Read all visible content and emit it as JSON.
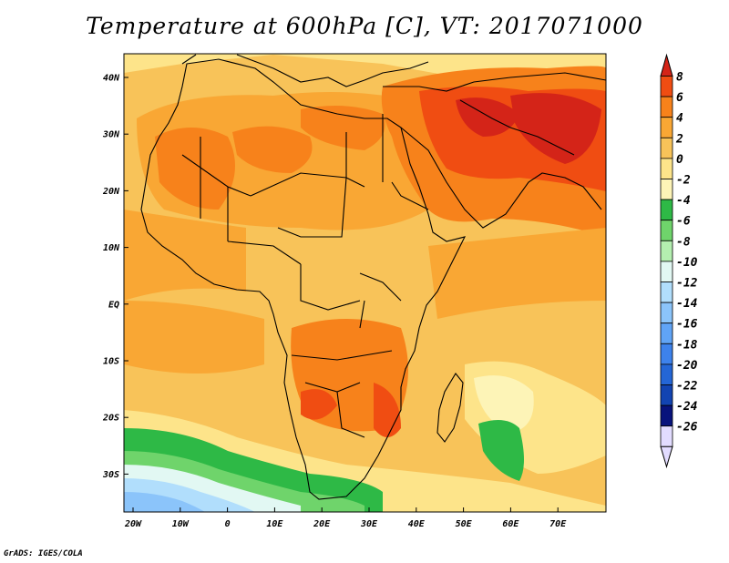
{
  "title": "Temperature at 600hPa [C], VT: 2017071000",
  "credit": "GrADS: IGES/COLA",
  "lat_labels": [
    "40N",
    "30N",
    "20N",
    "10N",
    "EQ",
    "10S",
    "20S",
    "30S"
  ],
  "lon_labels": [
    "20W",
    "10W",
    "0",
    "10E",
    "20E",
    "30E",
    "40E",
    "50E",
    "60E",
    "70E"
  ],
  "colorbar": {
    "labels": [
      "8",
      "6",
      "4",
      "2",
      "0",
      "-2",
      "-4",
      "-6",
      "-8",
      "-10",
      "-12",
      "-14",
      "-16",
      "-18",
      "-20",
      "-22",
      "-24",
      "-26"
    ],
    "colors": [
      "#d42418",
      "#f04d12",
      "#f7821b",
      "#f9a734",
      "#f8c359",
      "#fde48a",
      "#fdf4b7",
      "#2eb946",
      "#6fd46b",
      "#b4efb0",
      "#e2f8f3",
      "#b1defc",
      "#8bc4fa",
      "#60a4f6",
      "#3d82ec",
      "#2466d6",
      "#1244b2",
      "#08137c",
      "#e2dcff"
    ]
  },
  "map": {
    "lat_range": [
      -36,
      45
    ],
    "lon_range": [
      -22,
      80
    ],
    "palette": {
      "warm_bg": "#f8c359",
      "orange": "#f9a734",
      "deep_orange": "#f7821b",
      "red_orange": "#f04d12",
      "light": "#fde48a",
      "pale": "#fdf4b7",
      "green": "#2eb946",
      "light_green": "#6fd46b",
      "mint": "#b4efb0",
      "cyan_white": "#e2f8f3",
      "light_blue": "#b1defc",
      "blue": "#8bc4fa"
    }
  }
}
